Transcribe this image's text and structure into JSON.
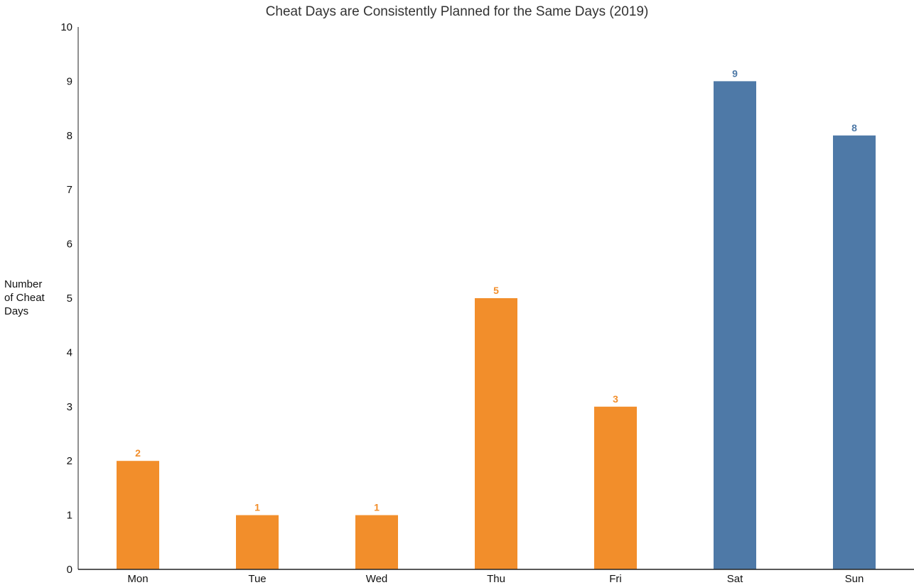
{
  "chart_data": {
    "type": "bar",
    "title": "Cheat Days are Consistently Planned for the Same Days (2019)",
    "ylabel_lines": [
      "Number",
      "of Cheat",
      "Days"
    ],
    "xlabel": "",
    "categories": [
      "Mon",
      "Tue",
      "Wed",
      "Thu",
      "Fri",
      "Sat",
      "Sun"
    ],
    "values": [
      2,
      1,
      1,
      5,
      3,
      9,
      8
    ],
    "bar_colors": [
      "#f28e2b",
      "#f28e2b",
      "#f28e2b",
      "#f28e2b",
      "#f28e2b",
      "#4e79a7",
      "#4e79a7"
    ],
    "ylim": [
      0,
      10
    ],
    "yticks": [
      0,
      1,
      2,
      3,
      4,
      5,
      6,
      7,
      8,
      9,
      10
    ],
    "grid": false,
    "data_labels": true
  }
}
